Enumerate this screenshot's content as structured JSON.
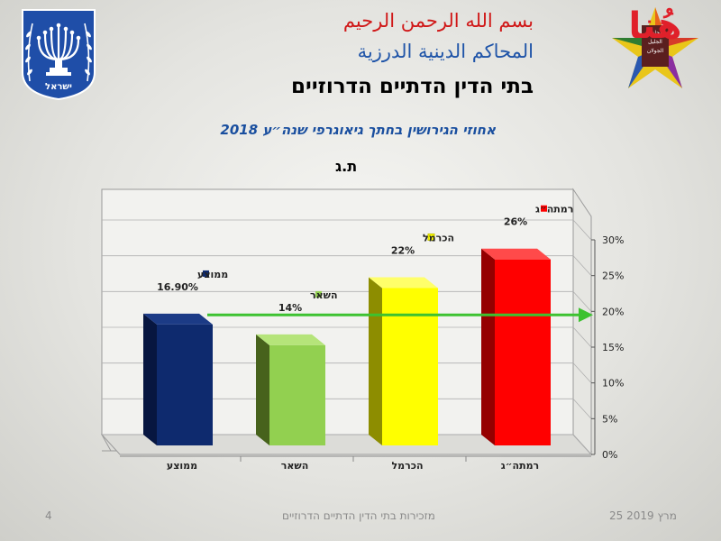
{
  "header": {
    "bismillah": "بسم الله الرحمن الرحيم",
    "court_ar": "المحاكم الدينية الدرزية",
    "court_he": "בתי הדין הדתיים הדרוזיים"
  },
  "emblem": {
    "text": "ישראל",
    "color": "#1f4ea8"
  },
  "logo": {
    "text": "هُنا",
    "color": "#e0202a"
  },
  "chart_data": {
    "type": "bar",
    "title": "אחוזי הגירושין בחתך גיאוגרפי שנה״ע 2018",
    "subtitle": "ת.ג",
    "categories": [
      "ממוצע",
      "השאר",
      "הכרמל",
      "רמתה״ג"
    ],
    "values": [
      16.9,
      14,
      22,
      26
    ],
    "value_labels": [
      "16.90%",
      "14%",
      "22%",
      "26%"
    ],
    "colors": [
      "#0e2a6e",
      "#92d050",
      "#ffff00",
      "#ff0000"
    ],
    "side_colors": [
      "#071640",
      "#47621c",
      "#8d8d00",
      "#950000"
    ],
    "top_colors": [
      "#1c3b86",
      "#b5e47a",
      "#ffff6a",
      "#ff4a4a"
    ],
    "ylim": [
      0,
      30
    ],
    "yticks": [
      "0%",
      "5%",
      "10%",
      "15%",
      "20%",
      "25%",
      "30%"
    ],
    "grid": true,
    "legend": "per-bar labels above each bar",
    "reference_line": {
      "value": 18,
      "color": "#3dc230",
      "label": ""
    }
  },
  "footer": {
    "center": "מזכירות בתי הדין הדתיים הדרוזיים",
    "date": "25 מרץ 2019",
    "page": "4"
  }
}
